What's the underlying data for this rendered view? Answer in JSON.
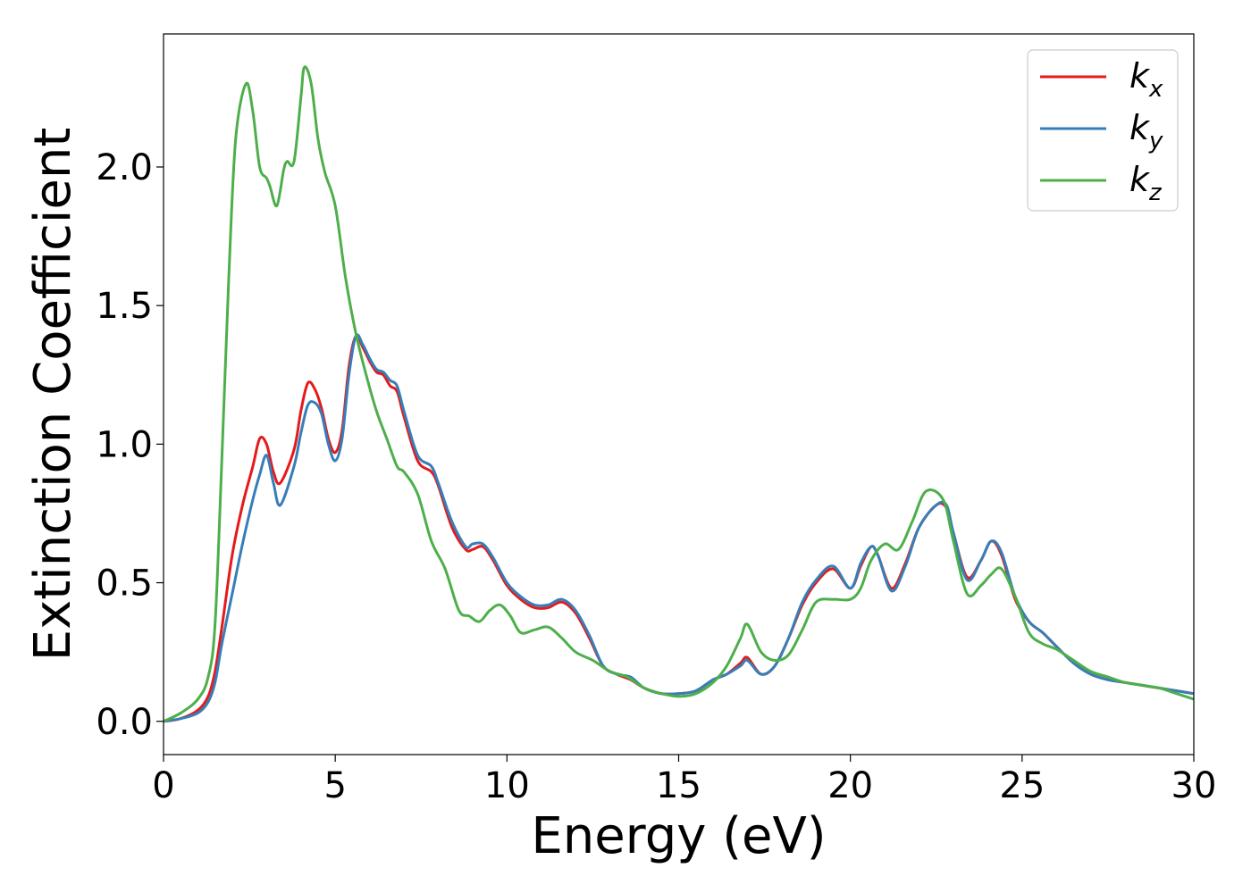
{
  "chart_data": {
    "type": "line",
    "title": "",
    "xlabel": "Energy (eV)",
    "ylabel": "Extinction Coefficient",
    "xlim": [
      0,
      30
    ],
    "ylim": [
      -0.12,
      2.48
    ],
    "xticks": [
      0,
      5,
      10,
      15,
      20,
      25,
      30
    ],
    "yticks": [
      0.0,
      0.5,
      1.0,
      1.5,
      2.0
    ],
    "xtick_labels": [
      "0",
      "5",
      "10",
      "15",
      "20",
      "25",
      "30"
    ],
    "ytick_labels": [
      "0.0",
      "0.5",
      "1.0",
      "1.5",
      "2.0"
    ],
    "grid": false,
    "legend_position": "top-right",
    "series": [
      {
        "name": "k",
        "subscript": "x",
        "color": "#e41a1c",
        "x": [
          0,
          0.5,
          1.0,
          1.3,
          1.5,
          1.7,
          2.0,
          2.3,
          2.6,
          2.8,
          3.0,
          3.2,
          3.4,
          3.8,
          4.0,
          4.2,
          4.4,
          4.6,
          4.8,
          5.0,
          5.2,
          5.4,
          5.6,
          5.8,
          6.0,
          6.2,
          6.4,
          6.6,
          6.8,
          7.0,
          7.4,
          7.8,
          8.0,
          8.4,
          8.8,
          9.0,
          9.3,
          9.6,
          10.0,
          10.4,
          10.8,
          11.2,
          11.6,
          12.0,
          12.4,
          12.8,
          13.2,
          13.6,
          14.0,
          14.5,
          15.0,
          15.5,
          16.0,
          16.4,
          16.8,
          17.0,
          17.4,
          17.8,
          18.2,
          18.6,
          19.0,
          19.5,
          20.0,
          20.3,
          20.6,
          20.8,
          21.2,
          21.6,
          22.0,
          22.5,
          22.8,
          23.0,
          23.4,
          23.8,
          24.1,
          24.4,
          24.8,
          25.2,
          25.6,
          26.0,
          26.5,
          27.0,
          27.5,
          28.0,
          28.5,
          29.0,
          29.5,
          30.0
        ],
        "y": [
          0.0,
          0.01,
          0.04,
          0.09,
          0.18,
          0.34,
          0.6,
          0.78,
          0.92,
          1.02,
          1.0,
          0.9,
          0.86,
          0.98,
          1.12,
          1.22,
          1.2,
          1.13,
          1.02,
          0.97,
          1.05,
          1.28,
          1.39,
          1.35,
          1.3,
          1.26,
          1.25,
          1.21,
          1.19,
          1.1,
          0.94,
          0.9,
          0.85,
          0.7,
          0.62,
          0.62,
          0.63,
          0.58,
          0.49,
          0.44,
          0.41,
          0.41,
          0.43,
          0.39,
          0.3,
          0.2,
          0.17,
          0.15,
          0.12,
          0.1,
          0.1,
          0.11,
          0.15,
          0.17,
          0.21,
          0.23,
          0.17,
          0.2,
          0.3,
          0.42,
          0.5,
          0.55,
          0.48,
          0.56,
          0.63,
          0.6,
          0.48,
          0.57,
          0.7,
          0.78,
          0.77,
          0.68,
          0.52,
          0.58,
          0.65,
          0.6,
          0.44,
          0.36,
          0.32,
          0.27,
          0.21,
          0.17,
          0.15,
          0.14,
          0.13,
          0.12,
          0.11,
          0.1
        ]
      },
      {
        "name": "k",
        "subscript": "y",
        "color": "#377eb8",
        "x": [
          0,
          0.5,
          1.0,
          1.3,
          1.5,
          1.7,
          2.0,
          2.3,
          2.6,
          2.8,
          3.0,
          3.2,
          3.4,
          3.8,
          4.0,
          4.2,
          4.4,
          4.6,
          4.8,
          5.0,
          5.2,
          5.4,
          5.6,
          5.8,
          6.0,
          6.2,
          6.4,
          6.6,
          6.8,
          7.0,
          7.4,
          7.8,
          8.0,
          8.4,
          8.8,
          9.0,
          9.3,
          9.6,
          10.0,
          10.4,
          10.8,
          11.2,
          11.6,
          12.0,
          12.4,
          12.8,
          13.2,
          13.6,
          14.0,
          14.5,
          15.0,
          15.5,
          16.0,
          16.4,
          16.8,
          17.0,
          17.4,
          17.8,
          18.2,
          18.6,
          19.0,
          19.5,
          20.0,
          20.3,
          20.6,
          20.8,
          21.2,
          21.6,
          22.0,
          22.5,
          22.8,
          23.0,
          23.4,
          23.8,
          24.1,
          24.4,
          24.8,
          25.2,
          25.6,
          26.0,
          26.5,
          27.0,
          27.5,
          28.0,
          28.5,
          29.0,
          29.5,
          30.0
        ],
        "y": [
          0.0,
          0.01,
          0.03,
          0.07,
          0.14,
          0.28,
          0.46,
          0.64,
          0.8,
          0.89,
          0.96,
          0.86,
          0.78,
          0.92,
          1.04,
          1.14,
          1.15,
          1.11,
          1.0,
          0.94,
          1.02,
          1.25,
          1.39,
          1.36,
          1.31,
          1.27,
          1.26,
          1.23,
          1.21,
          1.12,
          0.96,
          0.92,
          0.86,
          0.72,
          0.63,
          0.64,
          0.64,
          0.59,
          0.5,
          0.45,
          0.42,
          0.42,
          0.44,
          0.4,
          0.31,
          0.2,
          0.17,
          0.16,
          0.12,
          0.1,
          0.1,
          0.11,
          0.15,
          0.17,
          0.2,
          0.22,
          0.17,
          0.2,
          0.3,
          0.43,
          0.51,
          0.56,
          0.48,
          0.57,
          0.63,
          0.6,
          0.47,
          0.56,
          0.7,
          0.78,
          0.78,
          0.68,
          0.51,
          0.58,
          0.65,
          0.61,
          0.45,
          0.36,
          0.32,
          0.27,
          0.21,
          0.17,
          0.15,
          0.14,
          0.13,
          0.12,
          0.11,
          0.1
        ]
      },
      {
        "name": "k",
        "subscript": "z",
        "color": "#4daf4a",
        "x": [
          0,
          0.5,
          1.0,
          1.3,
          1.5,
          1.7,
          1.9,
          2.1,
          2.4,
          2.6,
          2.8,
          3.0,
          3.1,
          3.3,
          3.5,
          3.6,
          3.8,
          4.0,
          4.1,
          4.3,
          4.5,
          4.7,
          5.0,
          5.3,
          5.6,
          5.9,
          6.2,
          6.5,
          6.8,
          7.0,
          7.4,
          7.8,
          8.2,
          8.6,
          8.9,
          9.2,
          9.5,
          9.8,
          10.1,
          10.4,
          10.8,
          11.2,
          11.6,
          12.0,
          12.5,
          13.0,
          13.5,
          14.0,
          14.5,
          15.0,
          15.5,
          16.0,
          16.4,
          16.8,
          17.0,
          17.4,
          17.8,
          18.2,
          18.6,
          19.0,
          19.5,
          20.0,
          20.3,
          20.6,
          21.0,
          21.4,
          21.8,
          22.2,
          22.7,
          23.0,
          23.4,
          23.8,
          24.1,
          24.4,
          24.8,
          25.2,
          25.6,
          26.0,
          26.5,
          27.0,
          27.5,
          28.0,
          28.5,
          29.0,
          29.5,
          30.0
        ],
        "y": [
          0.0,
          0.03,
          0.08,
          0.16,
          0.35,
          0.95,
          1.6,
          2.1,
          2.3,
          2.2,
          2.0,
          1.96,
          1.93,
          1.86,
          1.99,
          2.02,
          2.02,
          2.25,
          2.36,
          2.3,
          2.1,
          1.98,
          1.86,
          1.6,
          1.4,
          1.25,
          1.12,
          1.02,
          0.92,
          0.9,
          0.82,
          0.65,
          0.55,
          0.4,
          0.38,
          0.36,
          0.4,
          0.42,
          0.38,
          0.32,
          0.33,
          0.34,
          0.3,
          0.25,
          0.22,
          0.18,
          0.16,
          0.12,
          0.1,
          0.09,
          0.1,
          0.14,
          0.2,
          0.3,
          0.35,
          0.25,
          0.22,
          0.24,
          0.33,
          0.43,
          0.44,
          0.44,
          0.48,
          0.58,
          0.64,
          0.62,
          0.72,
          0.83,
          0.8,
          0.65,
          0.46,
          0.49,
          0.53,
          0.55,
          0.45,
          0.32,
          0.28,
          0.26,
          0.22,
          0.18,
          0.16,
          0.14,
          0.13,
          0.12,
          0.1,
          0.08
        ]
      }
    ]
  }
}
